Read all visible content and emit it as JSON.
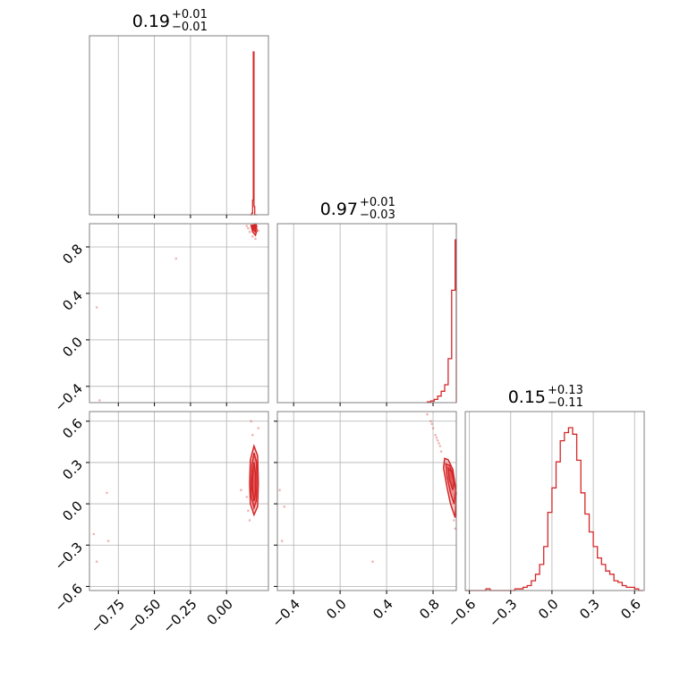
{
  "chart_data": {
    "type": "corner",
    "color": "#d62728",
    "grid": true,
    "titles": [
      {
        "value": "0.19",
        "plus": "+0.01",
        "minus": "−0.01"
      },
      {
        "value": "0.97",
        "plus": "+0.01",
        "minus": "−0.03"
      },
      {
        "value": "0.15",
        "plus": "+0.13",
        "minus": "−0.11"
      }
    ],
    "ranges": [
      [
        -0.95,
        0.29
      ],
      [
        -0.54,
        1.0
      ],
      [
        -0.63,
        0.67
      ]
    ],
    "ticks": [
      {
        "values": [
          -0.75,
          -0.5,
          -0.25,
          0.0
        ],
        "labels": [
          "−0.75",
          "−0.50",
          "−0.25",
          "0.00"
        ]
      },
      {
        "values": [
          -0.4,
          0.0,
          0.4,
          0.8
        ],
        "labels": [
          "−0.4",
          "0.0",
          "0.4",
          "0.8"
        ]
      },
      {
        "values": [
          -0.6,
          -0.3,
          0.0,
          0.3,
          0.6
        ],
        "labels": [
          "−0.6",
          "−0.3",
          "0.0",
          "0.3",
          "0.6"
        ]
      }
    ],
    "histograms": [
      {
        "param": 0,
        "edges": [
          0.16,
          0.175,
          0.18,
          0.185,
          0.19,
          0.195,
          0.2,
          0.205,
          0.21
        ],
        "counts": [
          0,
          0.01,
          0.09,
          1.0,
          0.05,
          0.0,
          0.0,
          0
        ]
      },
      {
        "param": 1,
        "edges": [
          0.75,
          0.78,
          0.81,
          0.84,
          0.87,
          0.9,
          0.93,
          0.96,
          0.99,
          1.0
        ],
        "counts": [
          0.005,
          0.01,
          0.02,
          0.04,
          0.07,
          0.11,
          0.27,
          0.69,
          1.0
        ]
      },
      {
        "param": 2,
        "edges": [
          -0.63,
          -0.6,
          -0.57,
          -0.54,
          -0.51,
          -0.48,
          -0.45,
          -0.42,
          -0.39,
          -0.36,
          -0.33,
          -0.3,
          -0.27,
          -0.24,
          -0.21,
          -0.18,
          -0.15,
          -0.12,
          -0.09,
          -0.06,
          -0.03,
          0.0,
          0.03,
          0.06,
          0.09,
          0.12,
          0.15,
          0.18,
          0.21,
          0.24,
          0.27,
          0.3,
          0.33,
          0.36,
          0.39,
          0.42,
          0.45,
          0.48,
          0.51,
          0.54,
          0.57,
          0.6,
          0.63,
          0.66
        ],
        "counts": [
          0.0,
          0.0,
          0.0,
          0.0,
          0.0,
          0.01,
          0.0,
          0.0,
          0.0,
          0.0,
          0.0,
          0.0,
          0.01,
          0.01,
          0.02,
          0.03,
          0.06,
          0.1,
          0.16,
          0.27,
          0.48,
          0.63,
          0.79,
          0.92,
          0.97,
          1.0,
          0.96,
          0.8,
          0.6,
          0.47,
          0.36,
          0.27,
          0.2,
          0.16,
          0.12,
          0.1,
          0.06,
          0.05,
          0.03,
          0.02,
          0.02,
          0.01,
          0.0
        ]
      }
    ],
    "scatter_2d": [
      {
        "x_param": 0,
        "y_param": 1,
        "contours": [
          {
            "level": 1,
            "points": [
              [
                0.17,
                0.985
              ],
              [
                0.18,
                0.93
              ],
              [
                0.2,
                0.9
              ],
              [
                0.21,
                0.94
              ],
              [
                0.205,
                0.99
              ]
            ]
          },
          {
            "level": 2,
            "points": [
              [
                0.175,
                0.975
              ],
              [
                0.185,
                0.945
              ],
              [
                0.198,
                0.93
              ],
              [
                0.2,
                0.965
              ],
              [
                0.195,
                0.99
              ]
            ]
          },
          {
            "level": 3,
            "points": [
              [
                0.183,
                0.97
              ],
              [
                0.19,
                0.955
              ],
              [
                0.196,
                0.962
              ],
              [
                0.193,
                0.985
              ]
            ]
          }
        ],
        "points": [
          [
            0.15,
            0.96
          ],
          [
            0.16,
            0.93
          ],
          [
            0.14,
            0.98
          ],
          [
            0.22,
            0.94
          ],
          [
            0.2,
            0.87
          ],
          [
            0.18,
            0.89
          ],
          [
            0.21,
            0.98
          ],
          [
            -0.35,
            0.7
          ],
          [
            -0.9,
            0.28
          ],
          [
            -0.88,
            -0.52
          ]
        ]
      },
      {
        "x_param": 0,
        "y_param": 2,
        "contours": [
          {
            "level": 1,
            "points": [
              [
                0.19,
                -0.08
              ],
              [
                0.165,
                0.0
              ],
              [
                0.16,
                0.15
              ],
              [
                0.165,
                0.32
              ],
              [
                0.19,
                0.42
              ],
              [
                0.215,
                0.35
              ],
              [
                0.22,
                0.15
              ],
              [
                0.215,
                -0.02
              ]
            ]
          },
          {
            "level": 2,
            "points": [
              [
                0.19,
                -0.03
              ],
              [
                0.172,
                0.05
              ],
              [
                0.17,
                0.15
              ],
              [
                0.175,
                0.28
              ],
              [
                0.19,
                0.37
              ],
              [
                0.208,
                0.3
              ],
              [
                0.21,
                0.15
              ],
              [
                0.205,
                0.02
              ]
            ]
          },
          {
            "level": 3,
            "points": [
              [
                0.19,
                0.02
              ],
              [
                0.18,
                0.1
              ],
              [
                0.18,
                0.2
              ],
              [
                0.19,
                0.3
              ],
              [
                0.2,
                0.22
              ],
              [
                0.2,
                0.08
              ]
            ]
          }
        ],
        "points": [
          [
            0.17,
            0.6
          ],
          [
            0.18,
            0.5
          ],
          [
            0.16,
            -0.12
          ],
          [
            0.14,
            0.05
          ],
          [
            0.1,
            0.1
          ],
          [
            0.22,
            0.55
          ],
          [
            0.15,
            -0.05
          ],
          [
            -0.83,
            0.08
          ],
          [
            -0.82,
            -0.27
          ],
          [
            -0.92,
            -0.22
          ],
          [
            -0.9,
            -0.42
          ]
        ]
      },
      {
        "x_param": 1,
        "y_param": 2,
        "contours": [
          {
            "level": 1,
            "points": [
              [
                0.9,
                0.33
              ],
              [
                0.89,
                0.26
              ],
              [
                0.92,
                0.12
              ],
              [
                0.95,
                0.0
              ],
              [
                0.99,
                -0.1
              ],
              [
                1.0,
                0.08
              ],
              [
                0.97,
                0.25
              ],
              [
                0.93,
                0.32
              ]
            ]
          },
          {
            "level": 2,
            "points": [
              [
                0.91,
                0.29
              ],
              [
                0.92,
                0.2
              ],
              [
                0.95,
                0.08
              ],
              [
                0.98,
                0.0
              ],
              [
                0.995,
                0.1
              ],
              [
                0.97,
                0.22
              ],
              [
                0.94,
                0.28
              ]
            ]
          },
          {
            "level": 3,
            "points": [
              [
                0.93,
                0.26
              ],
              [
                0.94,
                0.18
              ],
              [
                0.97,
                0.1
              ],
              [
                0.98,
                0.16
              ],
              [
                0.96,
                0.23
              ]
            ]
          }
        ],
        "points": [
          [
            0.75,
            0.65
          ],
          [
            0.78,
            0.6
          ],
          [
            0.8,
            0.55
          ],
          [
            0.82,
            0.5
          ],
          [
            0.84,
            0.46
          ],
          [
            0.86,
            0.42
          ],
          [
            0.87,
            0.38
          ],
          [
            0.85,
            0.44
          ],
          [
            0.83,
            0.48
          ],
          [
            0.79,
            0.58
          ],
          [
            0.99,
            -0.18
          ],
          [
            0.98,
            -0.12
          ],
          [
            -0.48,
            -0.02
          ],
          [
            -0.52,
            0.1
          ],
          [
            -0.5,
            -0.27
          ],
          [
            0.28,
            -0.42
          ]
        ]
      }
    ]
  }
}
